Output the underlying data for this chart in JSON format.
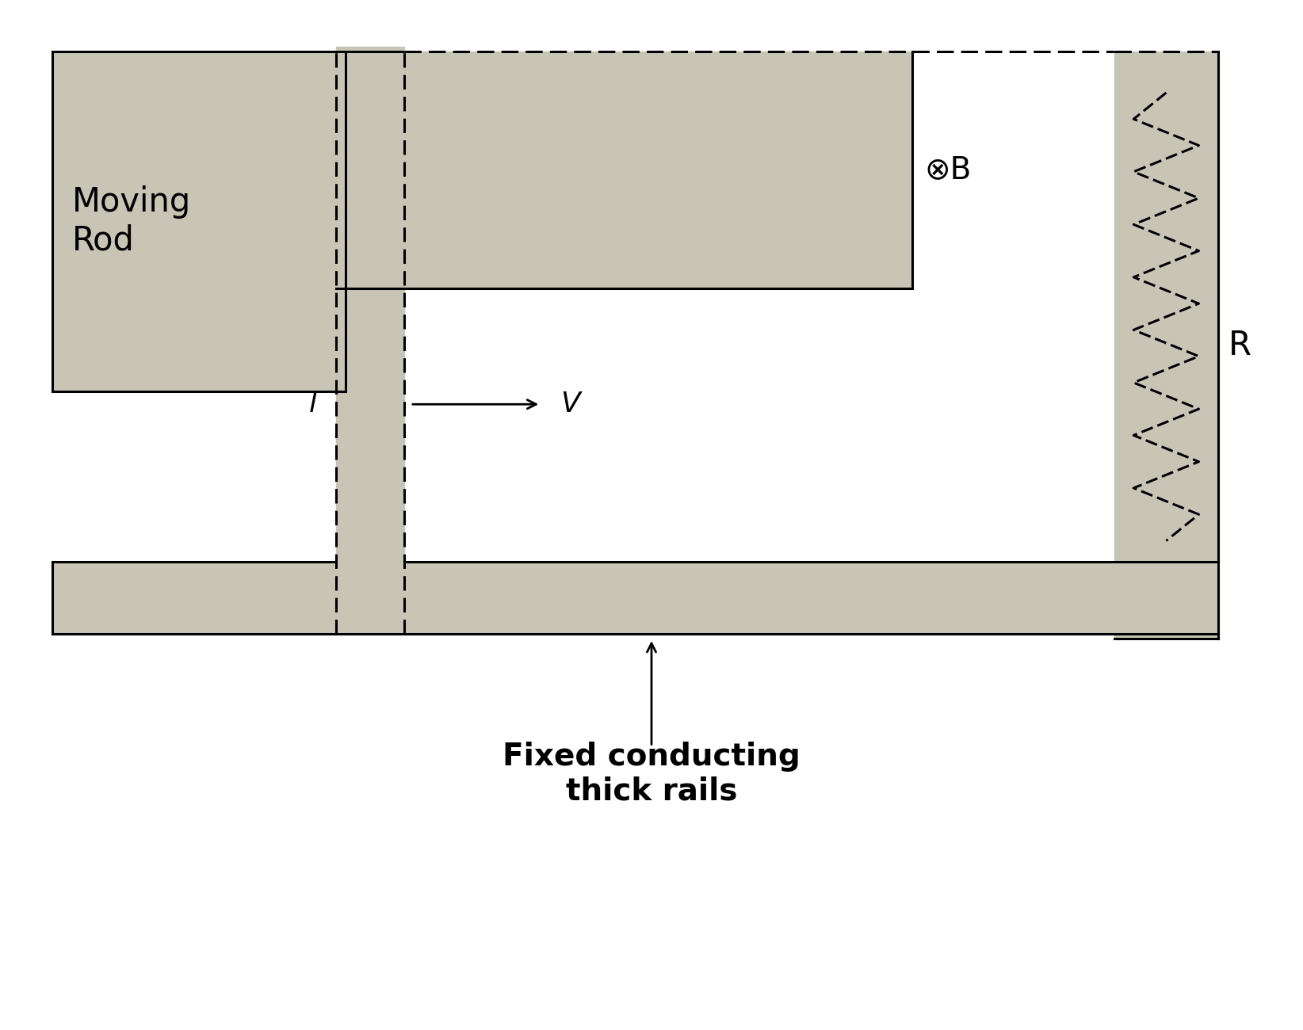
{
  "bg_color": "#ffffff",
  "gray": "#c9c5b6",
  "line_color": "#000000",
  "fig_width": 16.44,
  "fig_height": 13.0,
  "moving_rod_label": "Moving\nRod",
  "velocity_label": "V",
  "length_label": "l",
  "B_label": "⊗B",
  "R_label": "R",
  "rail_label": "Fixed conducting\nthick rails"
}
